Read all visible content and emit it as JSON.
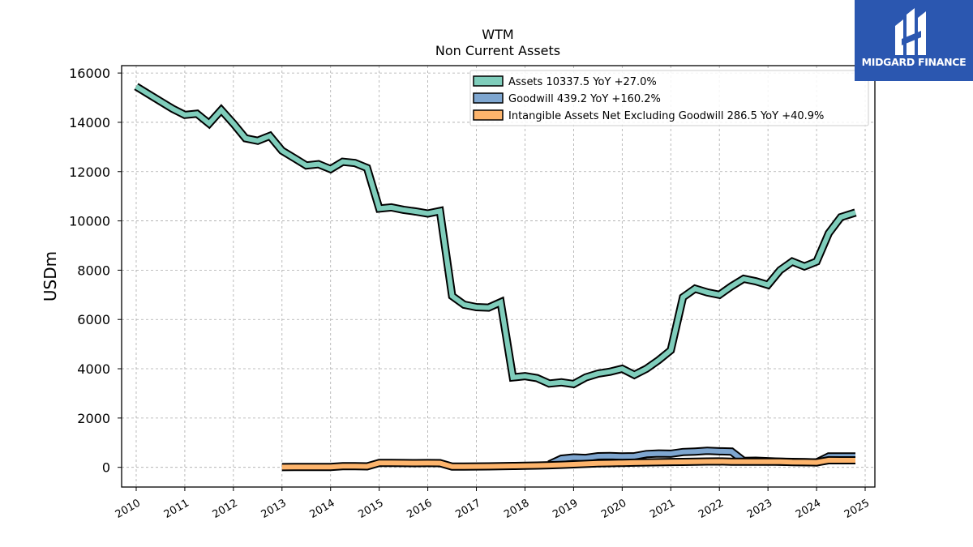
{
  "chart_data": {
    "type": "line",
    "title": "WTM",
    "subtitle": "Non Current  Assets",
    "ylabel": "USDm",
    "xlabel": "",
    "xlim": [
      2009.7,
      2025.2
    ],
    "ylim": [
      -800,
      16300
    ],
    "yticks": [
      0,
      2000,
      4000,
      6000,
      8000,
      10000,
      12000,
      14000,
      16000
    ],
    "xticks": [
      2010,
      2011,
      2012,
      2013,
      2014,
      2015,
      2016,
      2017,
      2018,
      2019,
      2020,
      2021,
      2022,
      2023,
      2024,
      2025
    ],
    "grid": true,
    "legend_position": "top-right",
    "series": [
      {
        "name": "Assets  10337.5 YoY +27.0%",
        "color": "#7fcdbb",
        "x": [
          2010.0,
          2010.25,
          2010.5,
          2010.75,
          2011.0,
          2011.25,
          2011.5,
          2011.75,
          2012.0,
          2012.25,
          2012.5,
          2012.75,
          2013.0,
          2013.25,
          2013.5,
          2013.75,
          2014.0,
          2014.25,
          2014.5,
          2014.75,
          2015.0,
          2015.25,
          2015.5,
          2015.75,
          2016.0,
          2016.25,
          2016.5,
          2016.75,
          2017.0,
          2017.25,
          2017.5,
          2017.75,
          2018.0,
          2018.25,
          2018.5,
          2018.75,
          2019.0,
          2019.25,
          2019.5,
          2019.75,
          2020.0,
          2020.25,
          2020.5,
          2020.75,
          2021.0,
          2021.25,
          2021.5,
          2021.75,
          2022.0,
          2022.25,
          2022.5,
          2022.75,
          2023.0,
          2023.25,
          2023.5,
          2023.75,
          2024.0,
          2024.25,
          2024.5,
          2024.8
        ],
        "y": [
          15450,
          15150,
          14850,
          14550,
          14300,
          14350,
          13950,
          14500,
          13950,
          13350,
          13250,
          13450,
          12850,
          12550,
          12250,
          12300,
          12100,
          12400,
          12350,
          12150,
          10500,
          10550,
          10450,
          10380,
          10300,
          10400,
          6950,
          6600,
          6500,
          6480,
          6700,
          3650,
          3700,
          3620,
          3400,
          3450,
          3380,
          3650,
          3800,
          3880,
          4000,
          3750,
          4000,
          4350,
          4750,
          6900,
          7250,
          7100,
          7000,
          7350,
          7650,
          7550,
          7400,
          8000,
          8350,
          8150,
          8350,
          9500,
          10150,
          10337.5
        ]
      },
      {
        "name": "Goodwill  439.2 YoY +160.2%",
        "color": "#7ea6d0",
        "x": [
          2018.5,
          2018.75,
          2019.0,
          2019.25,
          2019.5,
          2019.75,
          2020.0,
          2020.25,
          2020.5,
          2020.75,
          2021.0,
          2021.25,
          2021.5,
          2021.75,
          2022.0,
          2022.25,
          2022.5,
          2022.75,
          2023.0,
          2023.25,
          2023.5,
          2023.75,
          2024.0,
          2024.25,
          2024.5,
          2024.8
        ],
        "y": [
          120,
          350,
          400,
          380,
          450,
          460,
          440,
          450,
          540,
          560,
          550,
          620,
          640,
          670,
          650,
          640,
          260,
          270,
          250,
          230,
          220,
          210,
          200,
          439.2,
          439.2,
          439.2
        ]
      },
      {
        "name": "Intangible Assets Net Excluding Goodwill  286.5 YoY +40.9%",
        "color": "#fdb46c",
        "x": [
          2013.0,
          2013.25,
          2013.5,
          2013.75,
          2014.0,
          2014.25,
          2014.5,
          2014.75,
          2015.0,
          2015.25,
          2015.5,
          2015.75,
          2016.0,
          2016.25,
          2016.5,
          2016.75,
          2017.0,
          2017.25,
          2017.5,
          2017.75,
          2018.0,
          2018.25,
          2018.5,
          2018.75,
          2019.0,
          2019.25,
          2019.5,
          2019.75,
          2020.0,
          2020.25,
          2020.5,
          2020.75,
          2021.0,
          2021.25,
          2021.5,
          2021.75,
          2022.0,
          2022.25,
          2022.5,
          2022.75,
          2023.0,
          2023.25,
          2023.5,
          2023.75,
          2024.0,
          2024.25,
          2024.5,
          2024.8
        ],
        "y": [
          10,
          15,
          15,
          15,
          15,
          50,
          50,
          40,
          180,
          180,
          175,
          170,
          175,
          170,
          30,
          30,
          35,
          40,
          50,
          55,
          60,
          70,
          85,
          100,
          120,
          140,
          160,
          170,
          180,
          190,
          200,
          205,
          215,
          220,
          230,
          235,
          240,
          230,
          230,
          225,
          230,
          225,
          210,
          205,
          200,
          290,
          286.5,
          286.5
        ]
      }
    ]
  },
  "logo": {
    "name": "MIDGARD FINANCE",
    "bg_color": "#2b57b0"
  }
}
